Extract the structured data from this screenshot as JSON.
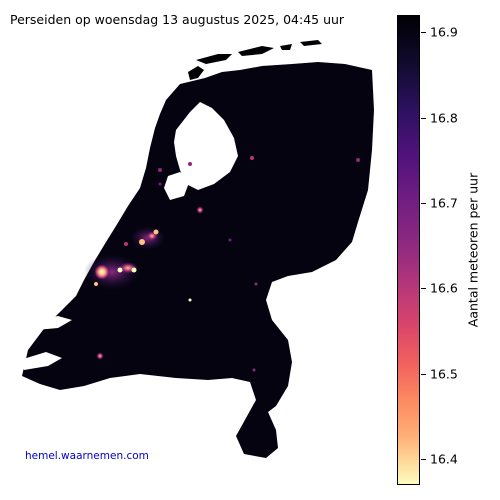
{
  "title": "Perseiden op woensdag 13 augustus 2025, 04:45 uur",
  "source_text": "hemel.waarnemen.com",
  "colorbar": {
    "label": "Aantal meteoren per uur",
    "min": 16.37,
    "max": 16.92,
    "ticks": [
      "16.9",
      "16.8",
      "16.7",
      "16.6",
      "16.5",
      "16.4"
    ],
    "colormap": "magma"
  }
}
